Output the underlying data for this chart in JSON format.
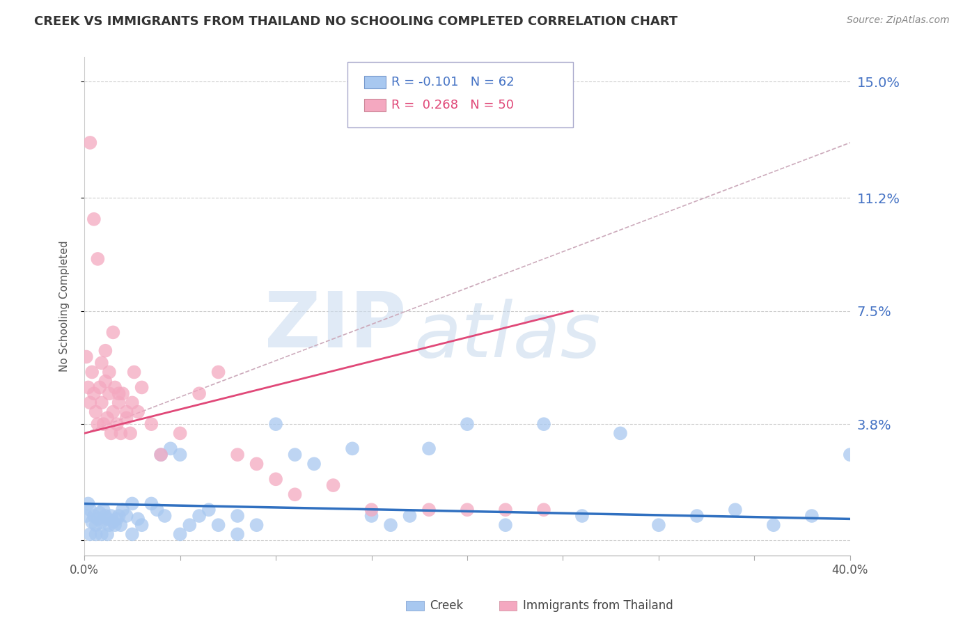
{
  "title": "CREEK VS IMMIGRANTS FROM THAILAND NO SCHOOLING COMPLETED CORRELATION CHART",
  "source": "Source: ZipAtlas.com",
  "ylabel": "No Schooling Completed",
  "xlim": [
    0.0,
    0.4
  ],
  "ylim": [
    -0.005,
    0.158
  ],
  "yticks": [
    0.0,
    0.038,
    0.075,
    0.112,
    0.15
  ],
  "ytick_labels": [
    "",
    "3.8%",
    "7.5%",
    "11.2%",
    "15.0%"
  ],
  "creek_color": "#a8c8f0",
  "thailand_color": "#f4a8c0",
  "creek_line_color": "#3070c0",
  "thailand_line_color": "#e04878",
  "dashed_line_color": "#ccaabb",
  "legend_creek_R": "-0.101",
  "legend_creek_N": "62",
  "legend_thailand_R": "0.268",
  "legend_thailand_N": "50",
  "creek_scatter_x": [
    0.001,
    0.002,
    0.003,
    0.004,
    0.005,
    0.006,
    0.007,
    0.008,
    0.009,
    0.01,
    0.011,
    0.012,
    0.013,
    0.014,
    0.015,
    0.016,
    0.017,
    0.018,
    0.019,
    0.02,
    0.022,
    0.025,
    0.028,
    0.03,
    0.035,
    0.038,
    0.04,
    0.042,
    0.045,
    0.05,
    0.055,
    0.06,
    0.065,
    0.07,
    0.08,
    0.09,
    0.1,
    0.11,
    0.12,
    0.14,
    0.15,
    0.16,
    0.17,
    0.18,
    0.2,
    0.22,
    0.24,
    0.26,
    0.28,
    0.3,
    0.32,
    0.34,
    0.36,
    0.38,
    0.4,
    0.003,
    0.006,
    0.009,
    0.012,
    0.025,
    0.05,
    0.08
  ],
  "creek_scatter_y": [
    0.008,
    0.012,
    0.01,
    0.006,
    0.008,
    0.005,
    0.007,
    0.009,
    0.006,
    0.01,
    0.008,
    0.007,
    0.005,
    0.008,
    0.006,
    0.005,
    0.007,
    0.008,
    0.005,
    0.01,
    0.008,
    0.012,
    0.007,
    0.005,
    0.012,
    0.01,
    0.028,
    0.008,
    0.03,
    0.028,
    0.005,
    0.008,
    0.01,
    0.005,
    0.008,
    0.005,
    0.038,
    0.028,
    0.025,
    0.03,
    0.008,
    0.005,
    0.008,
    0.03,
    0.038,
    0.005,
    0.038,
    0.008,
    0.035,
    0.005,
    0.008,
    0.01,
    0.005,
    0.008,
    0.028,
    0.002,
    0.002,
    0.002,
    0.002,
    0.002,
    0.002,
    0.002
  ],
  "thailand_scatter_x": [
    0.001,
    0.002,
    0.003,
    0.004,
    0.005,
    0.006,
    0.007,
    0.008,
    0.009,
    0.01,
    0.011,
    0.012,
    0.013,
    0.014,
    0.015,
    0.016,
    0.017,
    0.018,
    0.019,
    0.02,
    0.022,
    0.024,
    0.026,
    0.028,
    0.03,
    0.035,
    0.04,
    0.05,
    0.06,
    0.07,
    0.08,
    0.09,
    0.1,
    0.11,
    0.13,
    0.15,
    0.18,
    0.2,
    0.22,
    0.24,
    0.003,
    0.005,
    0.007,
    0.009,
    0.011,
    0.013,
    0.015,
    0.018,
    0.022,
    0.025
  ],
  "thailand_scatter_y": [
    0.06,
    0.05,
    0.045,
    0.055,
    0.048,
    0.042,
    0.038,
    0.05,
    0.045,
    0.038,
    0.052,
    0.04,
    0.048,
    0.035,
    0.042,
    0.05,
    0.038,
    0.045,
    0.035,
    0.048,
    0.04,
    0.035,
    0.055,
    0.042,
    0.05,
    0.038,
    0.028,
    0.035,
    0.048,
    0.055,
    0.028,
    0.025,
    0.02,
    0.015,
    0.018,
    0.01,
    0.01,
    0.01,
    0.01,
    0.01,
    0.13,
    0.105,
    0.092,
    0.058,
    0.062,
    0.055,
    0.068,
    0.048,
    0.042,
    0.045
  ],
  "creek_trend_x": [
    0.0,
    0.4
  ],
  "creek_trend_y": [
    0.012,
    0.007
  ],
  "thailand_trend_x": [
    0.0,
    0.255
  ],
  "thailand_trend_y": [
    0.035,
    0.075
  ],
  "dashed_trend_x": [
    0.0,
    0.4
  ],
  "dashed_trend_y": [
    0.035,
    0.13
  ]
}
